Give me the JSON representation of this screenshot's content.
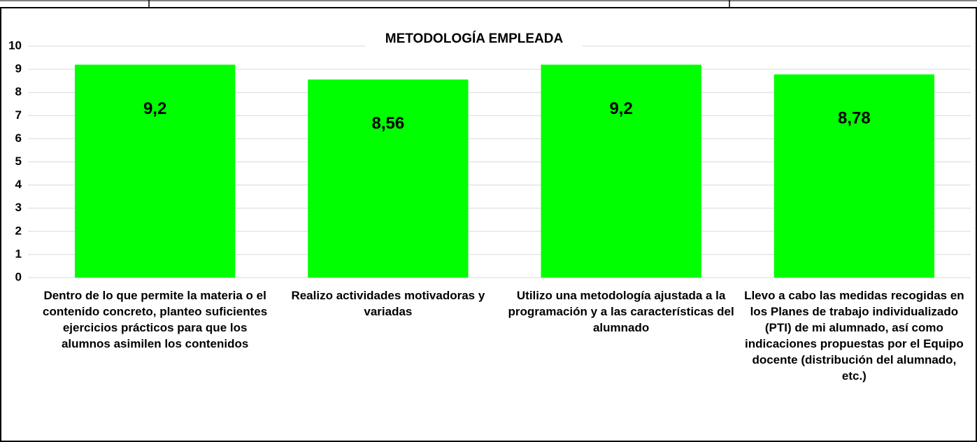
{
  "chart_data": {
    "type": "bar",
    "title": "METODOLOGÍA EMPLEADA",
    "categories": [
      "Dentro de lo que permite la materia o el contenido concreto, planteo suficientes ejercicios prácticos para que los alumnos asimilen los contenidos",
      "Realizo actividades motivadoras y variadas",
      "Utilizo una metodología ajustada a la programación y a las características del alumnado",
      "Llevo a cabo las medidas recogidas en los Planes de trabajo individualizado (PTI) de mi alumnado, así como indicaciones propuestas por el Equipo docente (distribución del alumnado, etc.)"
    ],
    "values": [
      9.2,
      8.56,
      9.2,
      8.78
    ],
    "value_labels": [
      "9,2",
      "8,56",
      "9,2",
      "8,78"
    ],
    "color": "#00ff00",
    "ylim": [
      0,
      10
    ],
    "yticks": [
      0,
      1,
      2,
      3,
      4,
      5,
      6,
      7,
      8,
      9,
      10
    ],
    "grid": true
  }
}
